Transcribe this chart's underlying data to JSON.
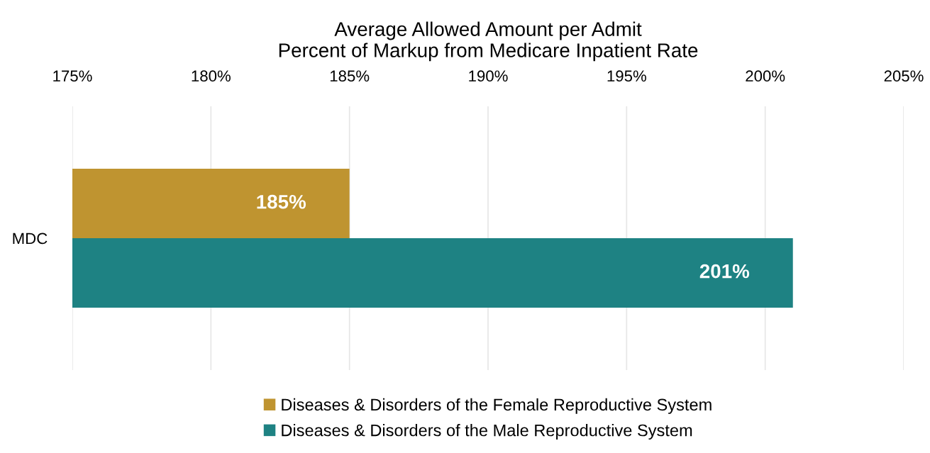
{
  "chart_data": {
    "type": "bar",
    "orientation": "horizontal",
    "title": "Average Allowed Amount per Admit\nPercent of Markup from Medicare Inpatient Rate",
    "categories": [
      "MDC"
    ],
    "series": [
      {
        "name": "Diseases & Disorders of the Female Reproductive System",
        "color": "#bf9430",
        "values": [
          185
        ],
        "value_labels": [
          "185%"
        ]
      },
      {
        "name": "Diseases & Disorders of the Male Reproductive System",
        "color": "#1e8283",
        "values": [
          201
        ],
        "value_labels": [
          "201%"
        ]
      }
    ],
    "xlim": [
      175,
      205
    ],
    "xticks": [
      {
        "value": 175,
        "label": "175%"
      },
      {
        "value": 180,
        "label": "180%"
      },
      {
        "value": 185,
        "label": "185%"
      },
      {
        "value": 190,
        "label": "190%"
      },
      {
        "value": 195,
        "label": "195%"
      },
      {
        "value": 200,
        "label": "200%"
      },
      {
        "value": 205,
        "label": "205%"
      }
    ],
    "grid": "x",
    "legend": "bottom"
  }
}
